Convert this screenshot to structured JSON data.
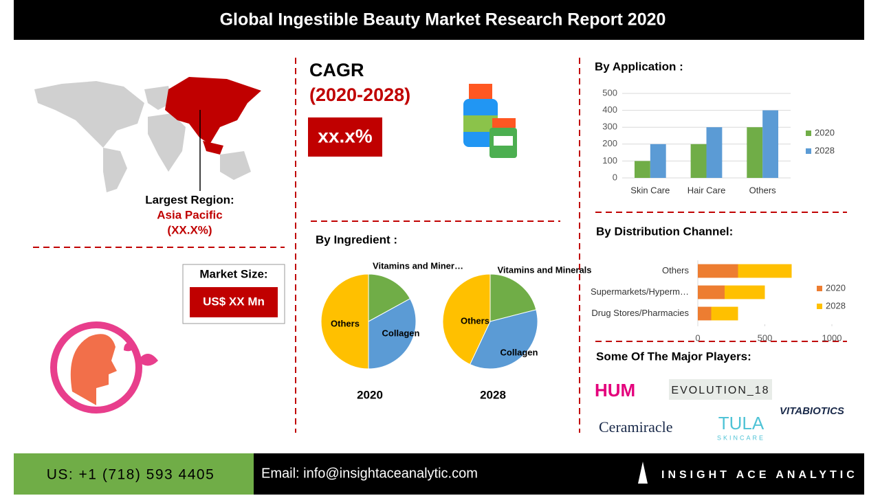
{
  "header": {
    "title": "Global Ingestible Beauty Market Research Report 2020"
  },
  "region": {
    "label": "Largest Region:",
    "name": "Asia Pacific",
    "share": "(XX.X%)"
  },
  "cagr": {
    "label": "CAGR",
    "period": "(2020-2028)",
    "value": "xx.x%"
  },
  "market_size": {
    "label": "Market Size:",
    "value": "US$ XX Mn"
  },
  "sections": {
    "application": "By Application :",
    "ingredient": "By Ingredient :",
    "distribution": "By Distribution Channel:",
    "players": "Some Of The Major Players:"
  },
  "players": [
    "HUM",
    "EVOLUTION_18",
    "Ceramiracle",
    "TULA",
    "SKINCARE",
    "VITABIOTICS"
  ],
  "footer": {
    "phone": "US: +1 (718) 593 4405",
    "email": "Email: info@insightaceanalytic.com",
    "brand": "INSIGHT ACE ANALYTIC"
  },
  "chart_data": [
    {
      "type": "bar",
      "orientation": "vertical",
      "stacked": false,
      "categories": [
        "Skin Care",
        "Hair Care",
        "Others"
      ],
      "series": [
        {
          "name": "2020",
          "color": "#70ad47",
          "values": [
            100,
            200,
            300
          ]
        },
        {
          "name": "2028",
          "color": "#5b9bd5",
          "values": [
            200,
            300,
            400
          ]
        }
      ],
      "ylim": [
        0,
        500
      ],
      "yticks": [
        0,
        100,
        200,
        300,
        400,
        500
      ],
      "grid": true,
      "legend": "right"
    },
    {
      "type": "pie",
      "title": "2020",
      "categories": [
        "Vitamins and Miner…",
        "Collagen",
        "Others"
      ],
      "values": [
        17,
        33,
        50
      ],
      "colors": [
        "#70ad47",
        "#5b9bd5",
        "#ffc000"
      ]
    },
    {
      "type": "pie",
      "title": "2028",
      "categories": [
        "Vitamins and Minerals",
        "Collagen",
        "Others"
      ],
      "values": [
        21,
        36,
        43
      ],
      "colors": [
        "#70ad47",
        "#5b9bd5",
        "#ffc000"
      ]
    },
    {
      "type": "bar",
      "orientation": "horizontal",
      "stacked": true,
      "categories": [
        "Others",
        "Supermarkets/Hyperm…",
        "Drug Stores/Pharmacies"
      ],
      "series": [
        {
          "name": "2020",
          "color": "#ed7d31",
          "values": [
            300,
            200,
            100
          ]
        },
        {
          "name": "2028",
          "color": "#ffc000",
          "values": [
            400,
            300,
            200
          ]
        }
      ],
      "xlim": [
        0,
        1000
      ],
      "xticks": [
        0,
        500,
        1000
      ],
      "grid": false,
      "legend": "right"
    }
  ]
}
